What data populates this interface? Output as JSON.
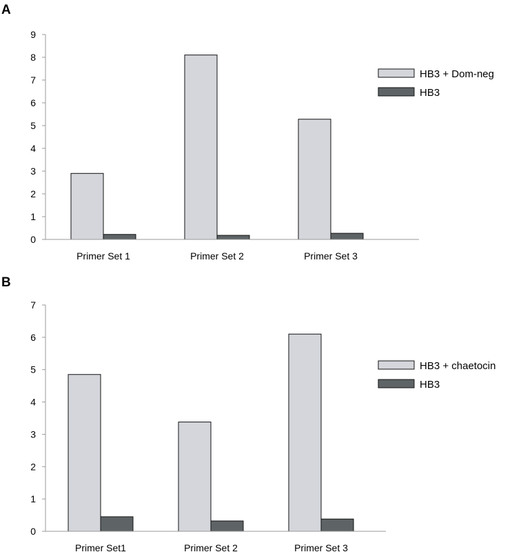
{
  "chart_data": [
    {
      "type": "bar",
      "panel_label": "A",
      "categories": [
        "Primer Set 1",
        "Primer Set 2",
        "Primer Set 3"
      ],
      "series": [
        {
          "name": "HB3 + Dom-neg",
          "values": [
            2.9,
            8.1,
            5.28
          ],
          "color": "#d4d6dc"
        },
        {
          "name": "HB3",
          "values": [
            0.22,
            0.18,
            0.27
          ],
          "color": "#5e6466"
        }
      ],
      "ylim": [
        0,
        9
      ],
      "yticks": [
        "0",
        "1",
        "2",
        "3",
        "4",
        "5",
        "6",
        "7",
        "8",
        "9"
      ],
      "xlabel": "",
      "ylabel": "",
      "legend_position": "right"
    },
    {
      "type": "bar",
      "panel_label": "B",
      "categories": [
        "Primer Set1",
        "Primer Set 2",
        "Primer Set 3"
      ],
      "series": [
        {
          "name": "HB3 + chaetocin",
          "values": [
            4.85,
            3.38,
            6.1
          ],
          "color": "#d4d6dc"
        },
        {
          "name": "HB3",
          "values": [
            0.45,
            0.32,
            0.38
          ],
          "color": "#5e6466"
        }
      ],
      "ylim": [
        0,
        7
      ],
      "yticks": [
        "0",
        "1",
        "2",
        "3",
        "4",
        "5",
        "6",
        "7"
      ],
      "xlabel": "",
      "ylabel": "",
      "legend_position": "right"
    }
  ]
}
